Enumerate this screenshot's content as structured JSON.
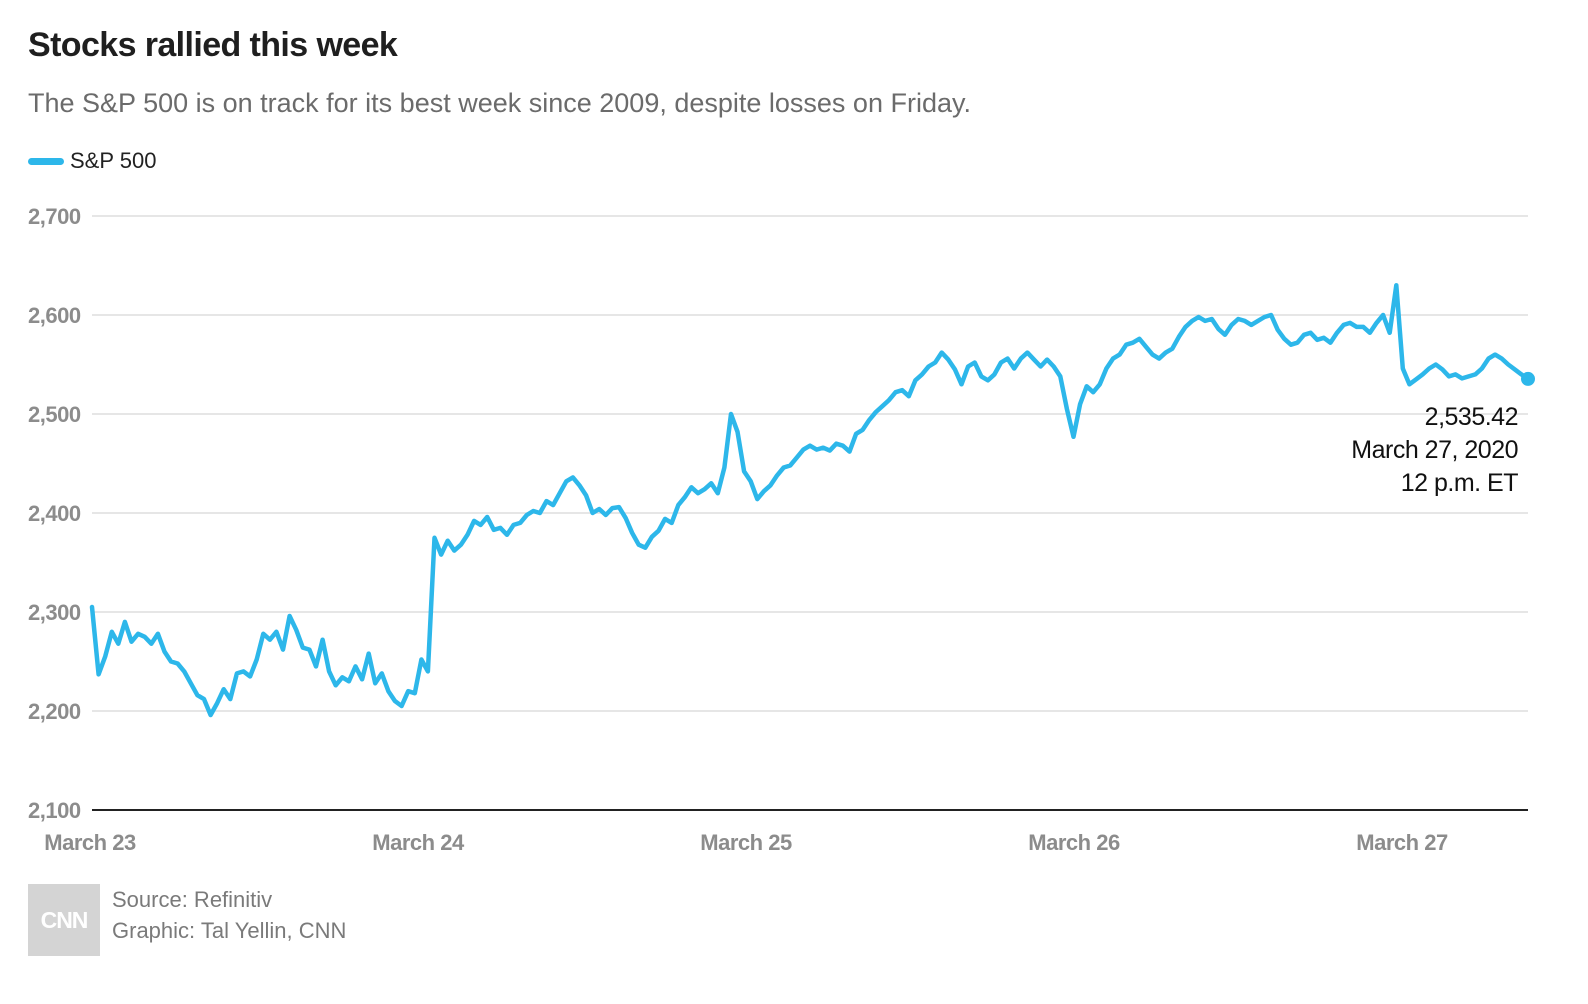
{
  "title": "Stocks rallied this week",
  "subtitle": "The S&P 500 is on track for its best week since 2009, despite losses on Friday.",
  "colors": {
    "series": "#2db7ea",
    "grid": "#dddddd",
    "axis_text": "#8c8c8c",
    "title": "#1f1f1f"
  },
  "footer": {
    "logo_text": "CNN",
    "source": "Source: Refinitiv",
    "credit": "Graphic: Tal Yellin, CNN"
  },
  "chart_data": {
    "type": "line",
    "title": "Stocks rallied this week",
    "series": [
      {
        "name": "S&P 500",
        "values": [
          2305,
          2237,
          2255,
          2280,
          2268,
          2290,
          2270,
          2278,
          2275,
          2268,
          2278,
          2260,
          2250,
          2248,
          2240,
          2228,
          2216,
          2212,
          2196,
          2208,
          2222,
          2212,
          2238,
          2240,
          2235,
          2252,
          2278,
          2272,
          2280,
          2262,
          2296,
          2282,
          2264,
          2262,
          2245,
          2272,
          2240,
          2226,
          2234,
          2230,
          2245,
          2232,
          2258,
          2228,
          2238,
          2220,
          2210,
          2205,
          2220,
          2218,
          2252,
          2240,
          2375,
          2358,
          2372,
          2362,
          2368,
          2378,
          2392,
          2388,
          2396,
          2383,
          2385,
          2378,
          2388,
          2390,
          2398,
          2402,
          2400,
          2412,
          2408,
          2420,
          2432,
          2436,
          2428,
          2418,
          2400,
          2404,
          2398,
          2405,
          2406,
          2395,
          2380,
          2368,
          2365,
          2376,
          2382,
          2394,
          2390,
          2408,
          2416,
          2426,
          2420,
          2424,
          2430,
          2420,
          2446,
          2500,
          2482,
          2442,
          2432,
          2414,
          2422,
          2428,
          2438,
          2446,
          2448,
          2456,
          2464,
          2468,
          2464,
          2466,
          2463,
          2470,
          2468,
          2462,
          2480,
          2484,
          2494,
          2502,
          2508,
          2514,
          2522,
          2524,
          2518,
          2534,
          2540,
          2548,
          2552,
          2562,
          2555,
          2545,
          2530,
          2548,
          2552,
          2538,
          2534,
          2540,
          2552,
          2556,
          2546,
          2556,
          2562,
          2555,
          2548,
          2555,
          2548,
          2538,
          2505,
          2477,
          2510,
          2528,
          2522,
          2530,
          2546,
          2556,
          2560,
          2570,
          2572,
          2576,
          2568,
          2560,
          2556,
          2562,
          2566,
          2578,
          2588,
          2594,
          2598,
          2594,
          2596,
          2586,
          2580,
          2590,
          2596,
          2594,
          2590,
          2594,
          2598,
          2600,
          2585,
          2576,
          2570,
          2572,
          2580,
          2582,
          2575,
          2577,
          2572,
          2582,
          2590,
          2592,
          2588,
          2588,
          2582,
          2592,
          2600,
          2582,
          2630,
          2546,
          2530,
          2535,
          2540,
          2546,
          2550,
          2545,
          2538,
          2540,
          2536,
          2538,
          2540,
          2546,
          2556,
          2560,
          2556,
          2550,
          2545,
          2540,
          2535.42
        ]
      }
    ],
    "x_ticks": [
      "March 23",
      "March 24",
      "March 25",
      "March 26",
      "March 27"
    ],
    "y_ticks": [
      "2,100",
      "2,200",
      "2,300",
      "2,400",
      "2,500",
      "2,600",
      "2,700"
    ],
    "ylim": [
      2100,
      2700
    ],
    "xlabel": "",
    "ylabel": "",
    "grid": true,
    "legend": "top-left",
    "annotation": {
      "value": "2,535.42",
      "date": "March 27, 2020",
      "time": "12 p.m. ET"
    }
  }
}
